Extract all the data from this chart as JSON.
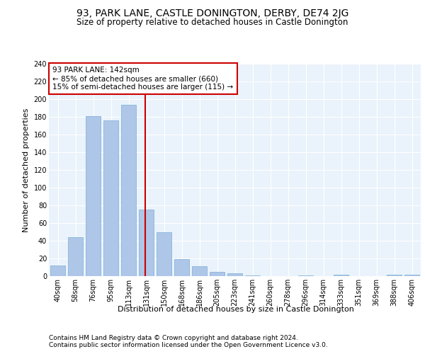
{
  "title1": "93, PARK LANE, CASTLE DONINGTON, DERBY, DE74 2JG",
  "title2": "Size of property relative to detached houses in Castle Donington",
  "xlabel": "Distribution of detached houses by size in Castle Donington",
  "ylabel": "Number of detached properties",
  "categories": [
    "40sqm",
    "58sqm",
    "76sqm",
    "95sqm",
    "113sqm",
    "131sqm",
    "150sqm",
    "168sqm",
    "186sqm",
    "205sqm",
    "223sqm",
    "241sqm",
    "260sqm",
    "278sqm",
    "296sqm",
    "314sqm",
    "333sqm",
    "351sqm",
    "369sqm",
    "388sqm",
    "406sqm"
  ],
  "bar_heights": [
    12,
    44,
    181,
    176,
    194,
    75,
    50,
    19,
    11,
    5,
    3,
    1,
    0,
    0,
    1,
    0,
    2,
    0,
    0,
    2,
    2
  ],
  "bar_color": "#aec6e8",
  "bar_edge_color": "#7aafd4",
  "vline_color": "#cc0000",
  "annotation_text": "93 PARK LANE: 142sqm\n← 85% of detached houses are smaller (660)\n15% of semi-detached houses are larger (115) →",
  "annotation_box_color": "#ffffff",
  "annotation_box_edge_color": "#cc0000",
  "ylim": [
    0,
    240
  ],
  "yticks": [
    0,
    20,
    40,
    60,
    80,
    100,
    120,
    140,
    160,
    180,
    200,
    220,
    240
  ],
  "bg_color": "#eaf3fb",
  "footer1": "Contains HM Land Registry data © Crown copyright and database right 2024.",
  "footer2": "Contains public sector information licensed under the Open Government Licence v3.0.",
  "title1_fontsize": 10,
  "title2_fontsize": 8.5,
  "xlabel_fontsize": 8,
  "ylabel_fontsize": 8,
  "tick_fontsize": 7,
  "annotation_fontsize": 7.5,
  "footer_fontsize": 6.5,
  "vline_bar_index": 5
}
